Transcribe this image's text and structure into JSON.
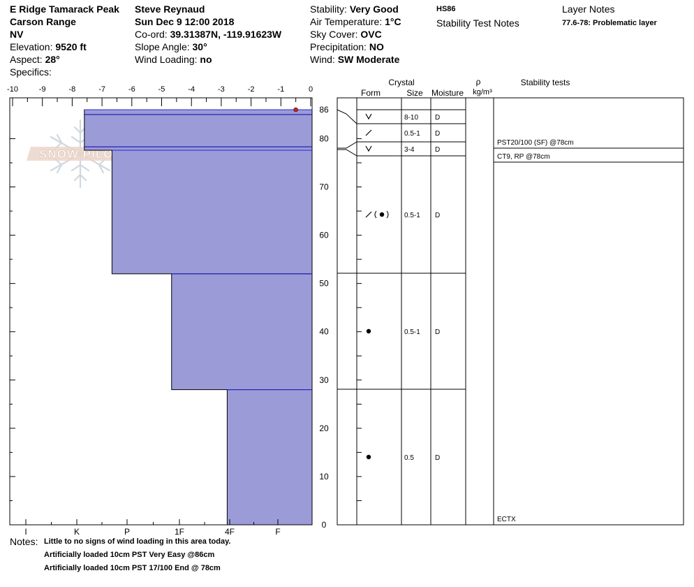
{
  "header": {
    "location": "E Ridge Tamarack Peak",
    "range": "Carson Range",
    "state": "NV",
    "elevation_label": "Elevation: ",
    "elevation_value": "9520 ft",
    "aspect_label": "Aspect: ",
    "aspect_value": "28°",
    "specifics_label": "Specifics:",
    "observer": "Steve Reynaud",
    "datetime": "Sun Dec 9 12:00 2018",
    "coord_label": "Co-ord: ",
    "coord_value": "39.31387N, -119.91623W",
    "slope_label": "Slope Angle: ",
    "slope_value": "30°",
    "wind_loading_label": "Wind Loading: ",
    "wind_loading_value": "no",
    "stability_label": "Stability: ",
    "stability_value": "Very Good",
    "air_temp_label": "Air Temperature: ",
    "air_temp_value": "1°C",
    "sky_label": "Sky Cover: ",
    "sky_value": "OVC",
    "precip_label": "Precipitation: ",
    "precip_value": "NO",
    "wind_label": "Wind:  ",
    "wind_value": "SW Moderate",
    "hs": "HS86",
    "stability_test_notes": "Stability Test Notes",
    "layer_notes_title": "Layer Notes",
    "layer_note": "77.6-78: Problematic layer"
  },
  "logo_text": "SNOW PILOT",
  "columns": {
    "crystal": "Crystal",
    "form": "Form",
    "size": "Size",
    "moisture": "Moisture",
    "rho": "ρ",
    "density_unit": "kg/m³",
    "stability_tests": "Stability tests"
  },
  "notes": {
    "label": "Notes:",
    "lines": [
      "Little to no signs of wind loading in this area today.",
      "Artificially loaded 10cm PST Very Easy @86cm",
      "Artificially loaded 10cm PST 17/100 End @ 78cm"
    ]
  },
  "chart_data": {
    "type": "snow_profile",
    "temp_axis": {
      "ticks": [
        -10,
        -9,
        -8,
        -7,
        -6,
        -5,
        -4,
        -3,
        -2,
        -1,
        0
      ],
      "range": [
        -10,
        0
      ]
    },
    "depth_axis": {
      "ticks": [
        86,
        80,
        70,
        60,
        50,
        40,
        30,
        20,
        10,
        0
      ],
      "range": [
        0,
        86
      ]
    },
    "hardness_axis": {
      "labels": [
        "I",
        "K",
        "P",
        "1F",
        "4F",
        "F"
      ]
    },
    "temperature_points": [
      {
        "depth": 86,
        "temp": -0.5
      }
    ],
    "layers": [
      {
        "top": 86,
        "bottom": 85,
        "hardness": 1.15,
        "form": "graupel-v",
        "size": "8-10",
        "moisture": "D"
      },
      {
        "top": 85,
        "bottom": 78.3,
        "hardness": 1.15,
        "form": "slash",
        "size": "0.5-1",
        "moisture": "D"
      },
      {
        "top": 78.3,
        "bottom": 77.6,
        "hardness": 1.15,
        "form": "graupel-v",
        "size": "3-4",
        "moisture": "D"
      },
      {
        "top": 77.6,
        "bottom": 52,
        "hardness": 1.7,
        "form": "slash-round",
        "size": "0.5-1",
        "moisture": "D"
      },
      {
        "top": 52,
        "bottom": 28,
        "hardness": 2.85,
        "form": "round",
        "size": "0.5-1",
        "moisture": "D"
      },
      {
        "top": 28,
        "bottom": 0,
        "hardness": 3.95,
        "form": "round",
        "size": "0.5",
        "moisture": "D"
      }
    ],
    "stability_tests": [
      {
        "label": "PST20/100 (SF) @78cm",
        "depth": 78
      },
      {
        "label": "CT9, RP @78cm",
        "depth": 78
      },
      {
        "label": "ECTX",
        "depth": 0
      }
    ]
  }
}
